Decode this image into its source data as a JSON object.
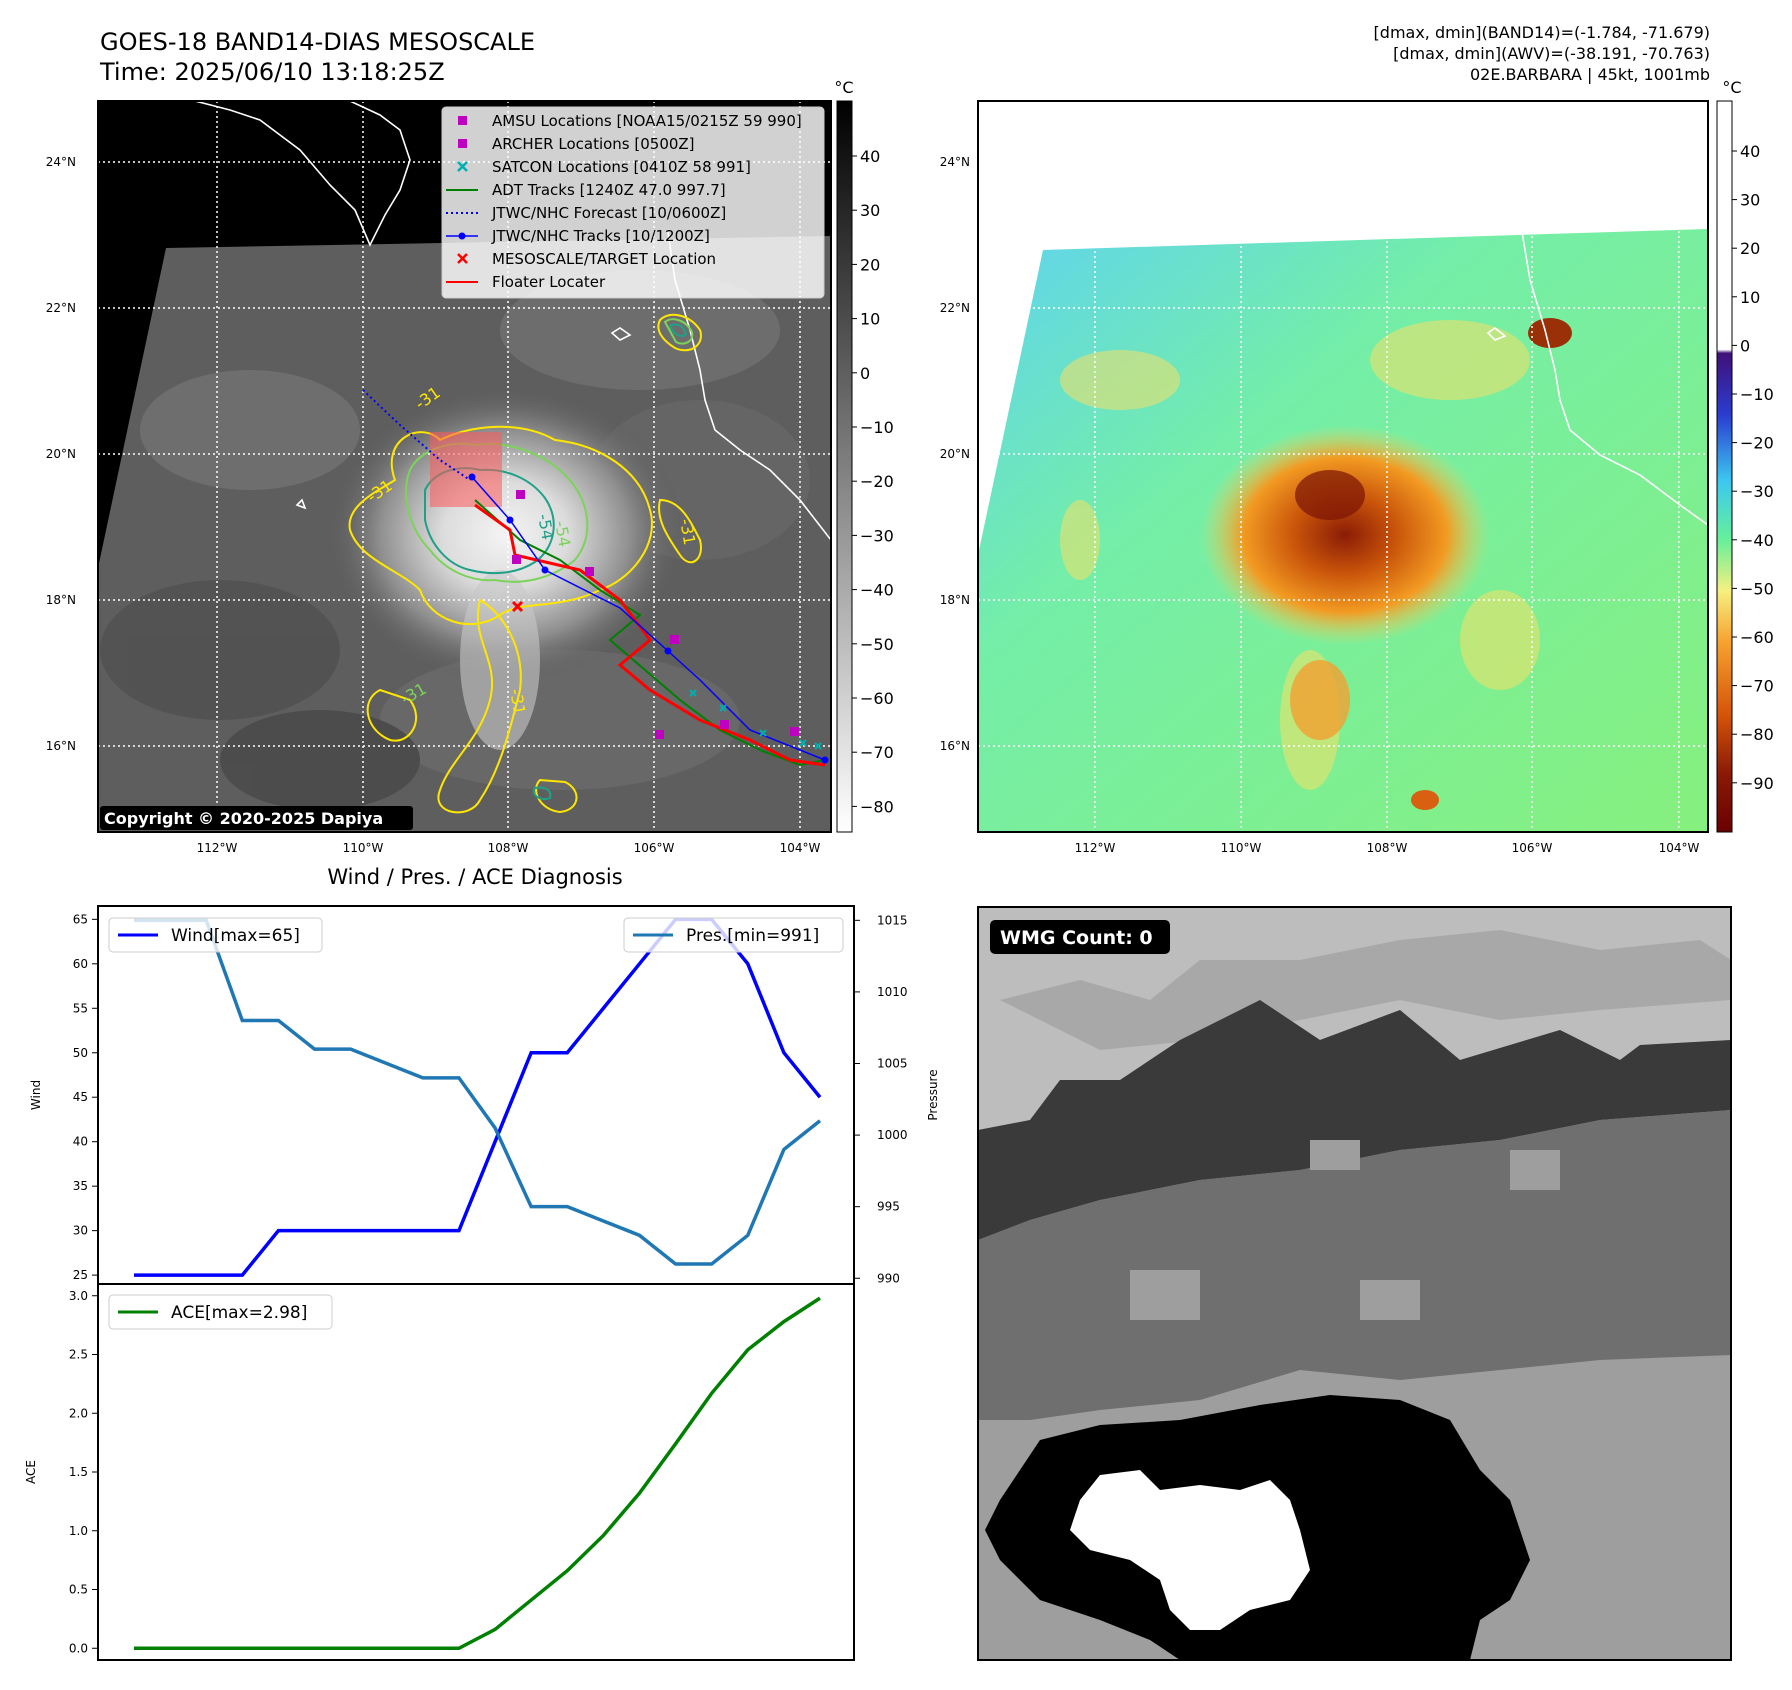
{
  "header": {
    "title": "GOES-18 BAND14-DIAS MESOSCALE",
    "time": "Time: 2025/06/10 13:18:25Z",
    "stats_band14": "[dmax, dmin](BAND14)=(-1.784, -71.679)",
    "stats_awv": "[dmax, dmin](AWV)=(-38.191, -70.763)",
    "storm_info": "02E.BARBARA | 45kt, 1001mb"
  },
  "map": {
    "lat_labels": [
      "24°N",
      "22°N",
      "20°N",
      "18°N",
      "16°N"
    ],
    "lon_labels": [
      "112°W",
      "110°W",
      "108°W",
      "106°W",
      "104°W"
    ],
    "contour_labels": [
      "-31",
      "-31",
      "-54",
      "-54",
      "-31",
      "-31",
      "-31"
    ],
    "copyright": "Copyright © 2020-2025 Dapiya",
    "legend": [
      {
        "label": "AMSU Locations [NOAA15/0215Z 59 990]",
        "marker": "square",
        "color": "#c000c0"
      },
      {
        "label": "ARCHER Locations [0500Z]",
        "marker": "square",
        "color": "#c000c0"
      },
      {
        "label": "SATCON Locations [0410Z 58 991]",
        "marker": "x",
        "color": "#00b0b0"
      },
      {
        "label": "ADT Tracks [1240Z 47.0 997.7]",
        "marker": "line",
        "color": "#008000"
      },
      {
        "label": "JTWC/NHC Forecast [10/0600Z]",
        "marker": "dotted",
        "color": "#0000ff"
      },
      {
        "label": "JTWC/NHC Tracks [10/1200Z]",
        "marker": "line-dot",
        "color": "#0000ff"
      },
      {
        "label": "MESOSCALE/TARGET Location",
        "marker": "x",
        "color": "#ff0000"
      },
      {
        "label": "Floater Locater",
        "marker": "line",
        "color": "#ff0000"
      }
    ]
  },
  "colorbar_gray": {
    "unit": "°C",
    "ticks": [
      "40",
      "30",
      "20",
      "10",
      "0",
      "−10",
      "−20",
      "−30",
      "−40",
      "−50",
      "−60",
      "−70",
      "−80"
    ]
  },
  "colorbar_color": {
    "unit": "°C",
    "ticks": [
      "40",
      "30",
      "20",
      "10",
      "0",
      "−10",
      "−20",
      "−30",
      "−40",
      "−50",
      "−60",
      "−70",
      "−80",
      "−90"
    ]
  },
  "colors": {
    "wind": "#0000ff",
    "pressure": "#1f77b4",
    "ace": "#008000",
    "contour_yellow": "#ffe600",
    "contour_green": "#7cd35a",
    "contour_teal": "#1fa187"
  },
  "wmg": {
    "label": "WMG Count: 0"
  },
  "diag_title": "Wind / Pres. / ACE Diagnosis",
  "chart_data": [
    {
      "type": "line",
      "title": "Wind / Pres. / ACE Diagnosis",
      "ylabel": "Wind",
      "ylabel_right": "Pressure",
      "ylim": [
        24,
        66.5
      ],
      "ylim_right": [
        989.6,
        1016
      ],
      "yticks": [
        "25",
        "30",
        "35",
        "40",
        "45",
        "50",
        "55",
        "60",
        "65"
      ],
      "yticks_right": [
        "990",
        "995",
        "1000",
        "1005",
        "1010",
        "1015"
      ],
      "x": [
        0,
        1,
        2,
        3,
        4,
        5,
        6,
        7,
        8,
        9,
        10,
        11,
        12,
        13,
        14,
        15,
        16,
        17,
        18,
        19
      ],
      "series": [
        {
          "name": "Wind[max=65]",
          "axis": "left",
          "values": [
            25,
            25,
            25,
            25,
            30,
            30,
            30,
            30,
            30,
            30,
            40,
            50,
            50,
            55,
            60,
            65,
            65,
            60,
            50,
            45
          ]
        },
        {
          "name": "Pres.[min=991]",
          "axis": "right",
          "values": [
            1015,
            1015,
            1015,
            1008,
            1008,
            1006,
            1006,
            1005,
            1004,
            1004,
            1000.5,
            995,
            995,
            994,
            993,
            991,
            991,
            993,
            999,
            1001
          ]
        }
      ]
    },
    {
      "type": "line",
      "ylabel": "ACE",
      "ylim": [
        -0.1,
        3.1
      ],
      "yticks": [
        "0.0",
        "0.5",
        "1.0",
        "1.5",
        "2.0",
        "2.5",
        "3.0"
      ],
      "x": [
        0,
        1,
        2,
        3,
        4,
        5,
        6,
        7,
        8,
        9,
        10,
        11,
        12,
        13,
        14,
        15,
        16,
        17,
        18,
        19
      ],
      "series": [
        {
          "name": "ACE[max=2.98]",
          "values": [
            0,
            0,
            0,
            0,
            0,
            0,
            0,
            0,
            0,
            0,
            0.16,
            0.41,
            0.66,
            0.96,
            1.32,
            1.74,
            2.17,
            2.54,
            2.78,
            2.98
          ]
        }
      ]
    }
  ]
}
